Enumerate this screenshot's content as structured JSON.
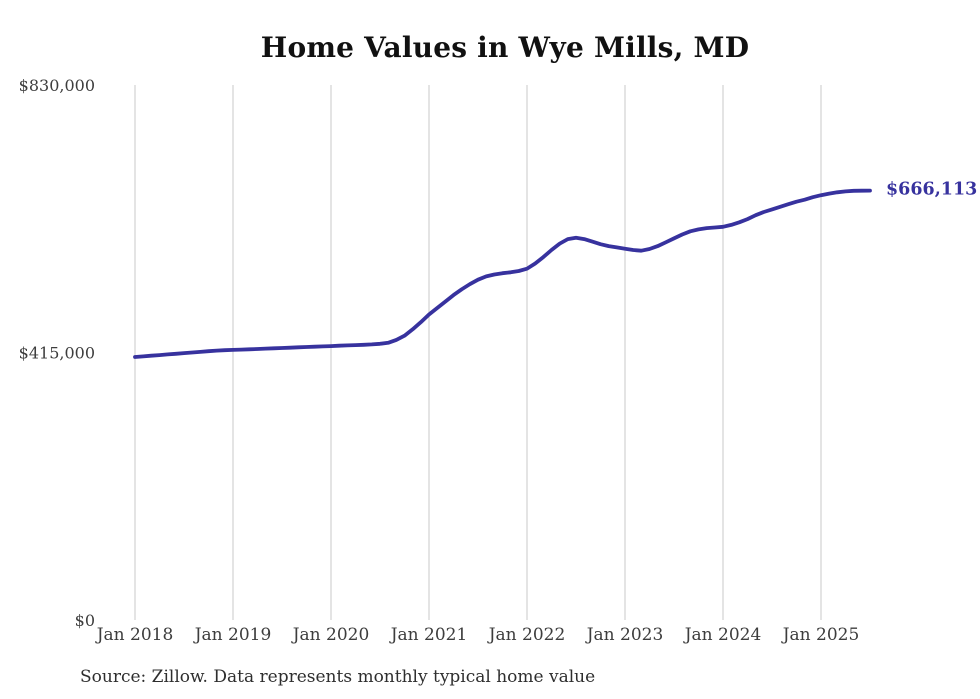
{
  "page": {
    "title": "Home Values in Wye Mills, MD",
    "source_note": "Source: Zillow. Data represents monthly typical home value"
  },
  "chart_data": {
    "type": "line",
    "title": "Home Values in Wye Mills, MD",
    "series_name": "Monthly typical home value",
    "xlabel": "",
    "ylabel": "",
    "ylim": [
      0,
      830000
    ],
    "grid": "vertical-only",
    "legend": "none",
    "line_color": "#37329e",
    "grid_color": "#c9c9c9",
    "tick_label_color": "#3d3d3d",
    "end_label": "$666,113",
    "end_value": 666113,
    "y_ticks": [
      {
        "label": "$0",
        "value": 0
      },
      {
        "label": "$415,000",
        "value": 415000
      },
      {
        "label": "$830,000",
        "value": 830000
      }
    ],
    "x_tick_labels": [
      "Jan 2018",
      "Jan 2019",
      "Jan 2020",
      "Jan 2021",
      "Jan 2022",
      "Jan 2023",
      "Jan 2024",
      "Jan 2025"
    ],
    "x": [
      "2018-01",
      "2018-02",
      "2018-03",
      "2018-04",
      "2018-05",
      "2018-06",
      "2018-07",
      "2018-08",
      "2018-09",
      "2018-10",
      "2018-11",
      "2018-12",
      "2019-01",
      "2019-02",
      "2019-03",
      "2019-04",
      "2019-05",
      "2019-06",
      "2019-07",
      "2019-08",
      "2019-09",
      "2019-10",
      "2019-11",
      "2019-12",
      "2020-01",
      "2020-02",
      "2020-03",
      "2020-04",
      "2020-05",
      "2020-06",
      "2020-07",
      "2020-08",
      "2020-09",
      "2020-10",
      "2020-11",
      "2020-12",
      "2021-01",
      "2021-02",
      "2021-03",
      "2021-04",
      "2021-05",
      "2021-06",
      "2021-07",
      "2021-08",
      "2021-09",
      "2021-10",
      "2021-11",
      "2021-12",
      "2022-01",
      "2022-02",
      "2022-03",
      "2022-04",
      "2022-05",
      "2022-06",
      "2022-07",
      "2022-08",
      "2022-09",
      "2022-10",
      "2022-11",
      "2022-12",
      "2023-01",
      "2023-02",
      "2023-03",
      "2023-04",
      "2023-05",
      "2023-06",
      "2023-07",
      "2023-08",
      "2023-09",
      "2023-10",
      "2023-11",
      "2023-12",
      "2024-01",
      "2024-02",
      "2024-03",
      "2024-04",
      "2024-05",
      "2024-06",
      "2024-07",
      "2024-08",
      "2024-09",
      "2024-10",
      "2024-11",
      "2024-12",
      "2025-01",
      "2025-02",
      "2025-03",
      "2025-04",
      "2025-05",
      "2025-06",
      "2025-07"
    ],
    "values": [
      408000,
      409000,
      410000,
      411000,
      412000,
      413000,
      414000,
      415000,
      416000,
      417000,
      418000,
      418500,
      419000,
      419500,
      420000,
      420500,
      421000,
      421500,
      422000,
      422500,
      423000,
      423500,
      424000,
      424500,
      425000,
      425500,
      426000,
      426500,
      427000,
      427500,
      428500,
      430000,
      434500,
      441000,
      451000,
      462000,
      474000,
      484000,
      494000,
      504000,
      513000,
      521000,
      528000,
      533000,
      536000,
      538000,
      539500,
      541500,
      545000,
      553000,
      563000,
      574000,
      584000,
      591000,
      593000,
      591000,
      587000,
      583000,
      580000,
      578000,
      576000,
      574000,
      573000,
      575500,
      580000,
      586000,
      592000,
      598000,
      603000,
      606000,
      608000,
      609000,
      610000,
      613000,
      617000,
      622000,
      628000,
      633000,
      637000,
      641000,
      645000,
      649000,
      652000,
      656000,
      659000,
      661500,
      663500,
      665000,
      665800,
      666000,
      666113
    ],
    "source": "Source: Zillow. Data represents monthly typical home value"
  }
}
